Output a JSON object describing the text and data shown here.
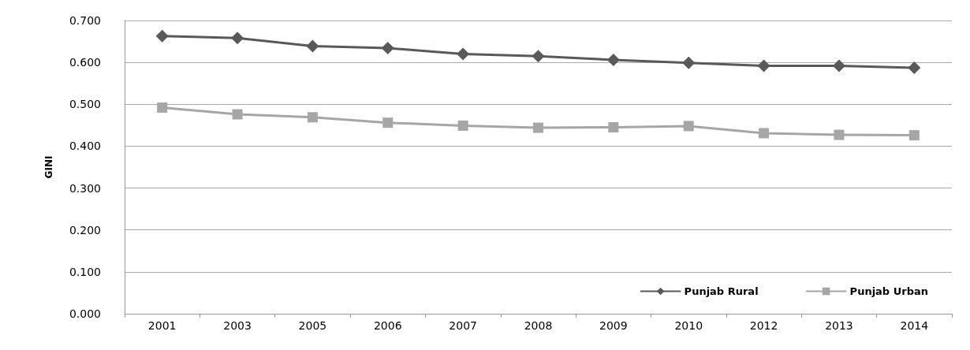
{
  "chart_data": {
    "type": "line",
    "ylabel": "GINI",
    "categories": [
      "2001",
      "2003",
      "2005",
      "2006",
      "2007",
      "2008",
      "2009",
      "2010",
      "2012",
      "2013",
      "2014"
    ],
    "series": [
      {
        "name": "Punjab Rural",
        "color": "#595959",
        "marker": "diamond",
        "values": [
          0.663,
          0.658,
          0.639,
          0.634,
          0.62,
          0.615,
          0.606,
          0.599,
          0.592,
          0.592,
          0.587
        ]
      },
      {
        "name": "Punjab Urban",
        "color": "#a6a6a6",
        "marker": "square",
        "values": [
          0.492,
          0.476,
          0.469,
          0.456,
          0.449,
          0.444,
          0.445,
          0.448,
          0.431,
          0.427,
          0.426
        ]
      }
    ],
    "ylim": [
      0,
      0.7
    ],
    "yticks": [
      {
        "value": 0,
        "label": "0.000"
      },
      {
        "value": 0.1,
        "label": "0.100"
      },
      {
        "value": 0.2,
        "label": "0.200"
      },
      {
        "value": 0.3,
        "label": "0.300"
      },
      {
        "value": 0.4,
        "label": "0.400"
      },
      {
        "value": 0.5,
        "label": "0.500"
      },
      {
        "value": 0.6,
        "label": "0.600"
      },
      {
        "value": 0.7,
        "label": "0.700"
      }
    ],
    "grid": "y",
    "legend": "bottom right",
    "line_style": "solid"
  }
}
